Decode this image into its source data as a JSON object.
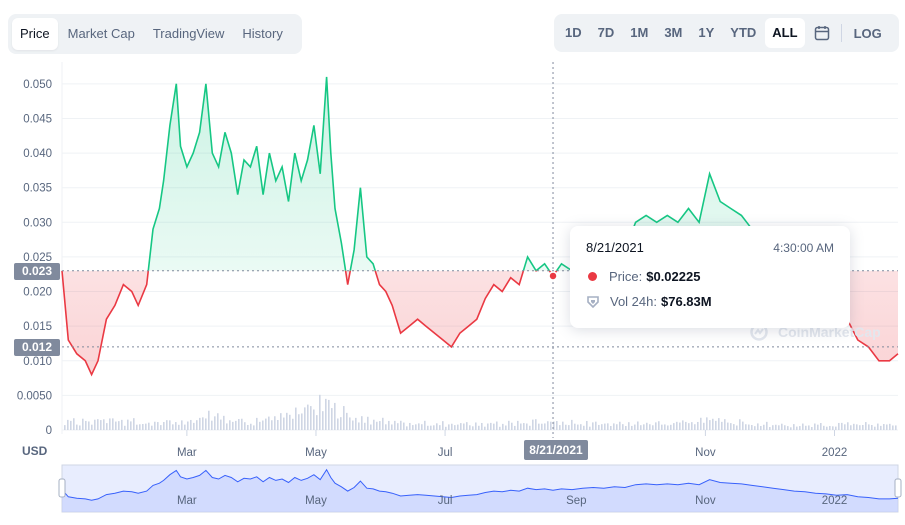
{
  "tabs": [
    "Price",
    "Market Cap",
    "TradingView",
    "History"
  ],
  "active_tab": "Price",
  "ranges": [
    "1D",
    "7D",
    "1M",
    "3M",
    "1Y",
    "YTD",
    "ALL"
  ],
  "active_range": "ALL",
  "log_label": "LOG",
  "currency_label": "USD",
  "crosshair": {
    "price_label": "0.023",
    "low_label": "0.012",
    "date_label": "8/21/2021"
  },
  "tooltip": {
    "date": "8/21/2021",
    "time": "4:30:00 AM",
    "price_label": "Price:",
    "price_value": "$0.02225",
    "vol_label": "Vol 24h:",
    "vol_value": "$76.83M"
  },
  "watermark": "CoinMarketCap",
  "colors": {
    "up": "#16c784",
    "down": "#ea3943",
    "navigator": "#3861fb"
  },
  "chart_data": {
    "type": "line",
    "title": "",
    "xlabel": "",
    "ylabel": "USD",
    "baseline": 0.023,
    "ylim": [
      0,
      0.052
    ],
    "yticks": [
      "0.050",
      "0.045",
      "0.040",
      "0.035",
      "0.030",
      "0.025",
      "0.020",
      "0.015",
      "0.010",
      "0.0050",
      "0"
    ],
    "ytick_values": [
      0.05,
      0.045,
      0.04,
      0.035,
      0.03,
      0.025,
      0.02,
      0.015,
      0.01,
      0.005,
      0
    ],
    "xticks": [
      "Mar",
      "May",
      "Jul",
      "Nov",
      "2022"
    ],
    "xtick_dates": [
      "2021-03-01",
      "2021-05-01",
      "2021-07-01",
      "2021-11-01",
      "2022-01-01"
    ],
    "navigator_ticks": [
      "Mar",
      "May",
      "Jul",
      "Sep",
      "Nov",
      "2022"
    ],
    "navigator_tick_dates": [
      "2021-03-01",
      "2021-05-01",
      "2021-07-01",
      "2021-09-01",
      "2021-11-01",
      "2022-01-01"
    ],
    "x_range": [
      "2021-01-01",
      "2022-01-31"
    ],
    "hover_point": {
      "x": "2021-08-21",
      "y": 0.02225
    },
    "series": [
      {
        "x": [
          "2021-01-01",
          "2021-01-04",
          "2021-01-08",
          "2021-01-12",
          "2021-01-15",
          "2021-01-18",
          "2021-01-22",
          "2021-01-26",
          "2021-01-30",
          "2021-02-03",
          "2021-02-06",
          "2021-02-10",
          "2021-02-13",
          "2021-02-16",
          "2021-02-18",
          "2021-02-21",
          "2021-02-24",
          "2021-02-26",
          "2021-03-01",
          "2021-03-04",
          "2021-03-07",
          "2021-03-10",
          "2021-03-13",
          "2021-03-16",
          "2021-03-19",
          "2021-03-22",
          "2021-03-25",
          "2021-03-28",
          "2021-03-31",
          "2021-04-03",
          "2021-04-06",
          "2021-04-09",
          "2021-04-12",
          "2021-04-15",
          "2021-04-18",
          "2021-04-21",
          "2021-04-24",
          "2021-04-27",
          "2021-04-30",
          "2021-05-03",
          "2021-05-06",
          "2021-05-08",
          "2021-05-10",
          "2021-05-13",
          "2021-05-16",
          "2021-05-19",
          "2021-05-22",
          "2021-05-25",
          "2021-05-28",
          "2021-05-31",
          "2021-06-03",
          "2021-06-06",
          "2021-06-10",
          "2021-06-14",
          "2021-06-18",
          "2021-06-22",
          "2021-06-26",
          "2021-06-30",
          "2021-07-04",
          "2021-07-08",
          "2021-07-12",
          "2021-07-16",
          "2021-07-20",
          "2021-07-24",
          "2021-07-28",
          "2021-08-01",
          "2021-08-05",
          "2021-08-09",
          "2021-08-13",
          "2021-08-17",
          "2021-08-21",
          "2021-08-25",
          "2021-08-30",
          "2021-09-04",
          "2021-09-09",
          "2021-09-14",
          "2021-09-19",
          "2021-09-24",
          "2021-09-29",
          "2021-10-04",
          "2021-10-09",
          "2021-10-14",
          "2021-10-19",
          "2021-10-24",
          "2021-10-29",
          "2021-11-03",
          "2021-11-08",
          "2021-11-13",
          "2021-11-18",
          "2021-11-23",
          "2021-11-28",
          "2021-12-03",
          "2021-12-08",
          "2021-12-13",
          "2021-12-18",
          "2021-12-23",
          "2021-12-28",
          "2022-01-02",
          "2022-01-07",
          "2022-01-12",
          "2022-01-17",
          "2022-01-22",
          "2022-01-27",
          "2022-01-31"
        ],
        "y": [
          0.023,
          0.013,
          0.011,
          0.01,
          0.008,
          0.01,
          0.016,
          0.018,
          0.021,
          0.02,
          0.018,
          0.021,
          0.029,
          0.032,
          0.036,
          0.044,
          0.05,
          0.041,
          0.038,
          0.04,
          0.043,
          0.05,
          0.04,
          0.038,
          0.043,
          0.04,
          0.034,
          0.039,
          0.038,
          0.041,
          0.034,
          0.04,
          0.036,
          0.038,
          0.033,
          0.04,
          0.036,
          0.039,
          0.044,
          0.037,
          0.051,
          0.04,
          0.032,
          0.027,
          0.021,
          0.026,
          0.035,
          0.025,
          0.024,
          0.021,
          0.02,
          0.018,
          0.014,
          0.015,
          0.016,
          0.015,
          0.014,
          0.013,
          0.012,
          0.014,
          0.015,
          0.016,
          0.019,
          0.021,
          0.02,
          0.022,
          0.021,
          0.025,
          0.023,
          0.024,
          0.02225,
          0.024,
          0.023,
          0.025,
          0.026,
          0.025,
          0.027,
          0.026,
          0.03,
          0.031,
          0.03,
          0.031,
          0.03,
          0.032,
          0.03,
          0.037,
          0.033,
          0.032,
          0.031,
          0.029,
          0.027,
          0.025,
          0.023,
          0.021,
          0.02,
          0.018,
          0.017,
          0.015,
          0.016,
          0.013,
          0.012,
          0.01,
          0.01,
          0.011
        ]
      }
    ],
    "volume_note": "volume bars shown beneath price line",
    "volume_x": [
      "2021-02-20",
      "2021-03-01",
      "2021-03-10",
      "2021-04-01",
      "2021-05-06",
      "2021-05-20",
      "2021-06-10",
      "2021-07-20",
      "2021-08-21",
      "2021-09-15",
      "2021-10-15",
      "2021-11-03",
      "2021-12-10",
      "2022-01-05"
    ],
    "volume_relative": [
      0.3,
      0.4,
      0.5,
      0.3,
      1.0,
      0.4,
      0.25,
      0.2,
      0.3,
      0.2,
      0.25,
      0.35,
      0.15,
      0.2
    ]
  }
}
